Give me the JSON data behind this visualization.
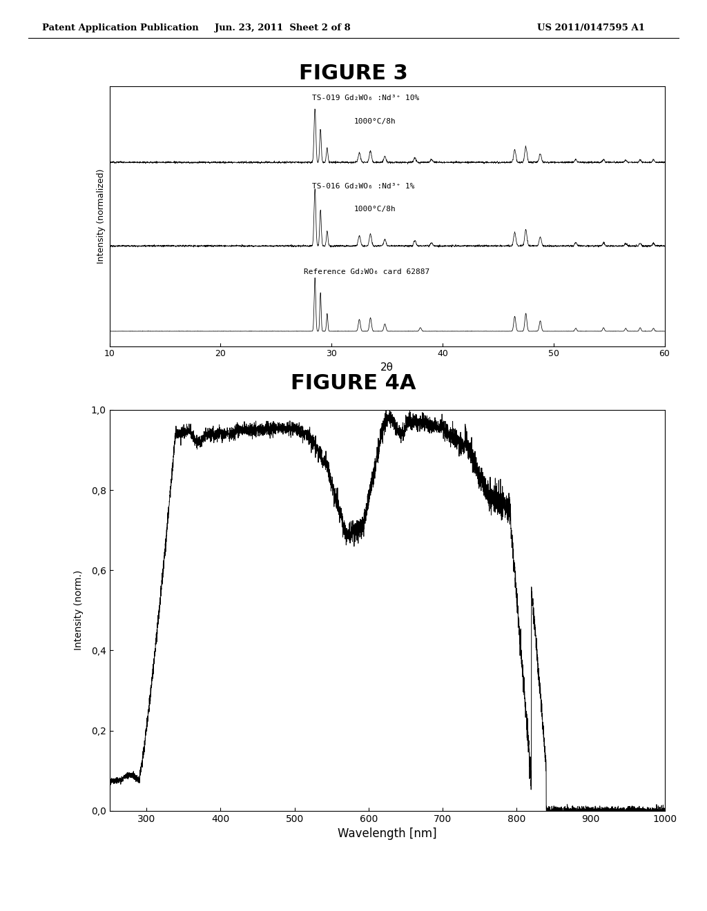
{
  "header_left": "Patent Application Publication",
  "header_center": "Jun. 23, 2011  Sheet 2 of 8",
  "header_right": "US 2011/0147595 A1",
  "fig3_title": "FIGURE 3",
  "fig4a_title": "FIGURE 4A",
  "fig3_xlabel": "2θ",
  "fig3_ylabel": "Intensity (normalized)",
  "fig4a_xlabel": "Wavelength [nm]",
  "fig4a_ylabel": "Intensity (norm.)",
  "fig3_xlim": [
    10,
    60
  ],
  "fig3_xticks": [
    10,
    20,
    30,
    40,
    50,
    60
  ],
  "fig4a_xlim": [
    250,
    1000
  ],
  "fig4a_xticks": [
    300,
    400,
    500,
    600,
    700,
    800,
    900,
    1000
  ],
  "fig4a_ylim": [
    0.0,
    1.0
  ],
  "fig4a_yticks": [
    0.0,
    0.2,
    0.4,
    0.6,
    0.8,
    1.0
  ],
  "fig4a_yticklabels": [
    "0,0",
    "0,2",
    "0,4",
    "0,6",
    "0,8",
    "1,0"
  ],
  "label_ts019_line1": "TS-019 Gd₂WO₆ :Nd³⁺ 10%",
  "label_ts019_line2": "1000°C/8h",
  "label_ts016_line1": "TS-016 Gd₂WO₆ :Nd³⁺ 1%",
  "label_ts016_line2": "1000°C/8h",
  "label_ref": "Reference Gd₂WO₆ card 62887",
  "background_color": "#ffffff",
  "line_color": "#000000"
}
